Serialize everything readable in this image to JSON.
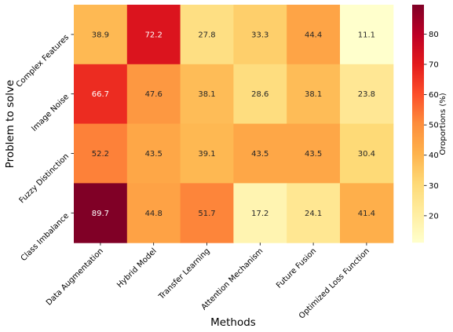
{
  "chart_data": {
    "type": "heatmap",
    "title": "",
    "xlabel": "Methods",
    "ylabel": "Problem to solve",
    "x_categories": [
      "Data Augmentation",
      "Hybrid Model",
      "Transfer Learning",
      "Attention Mechanism",
      "Future Fusion",
      "Optimized Loss Function"
    ],
    "y_categories": [
      "Complex Features",
      "Image Noise",
      "Fuzzy Distinction",
      "Class Imbalance"
    ],
    "values": [
      [
        38.9,
        72.2,
        27.8,
        33.3,
        44.4,
        11.1
      ],
      [
        66.7,
        47.6,
        38.1,
        28.6,
        38.1,
        23.8
      ],
      [
        52.2,
        43.5,
        39.1,
        43.5,
        43.5,
        30.4
      ],
      [
        89.7,
        44.8,
        51.7,
        17.2,
        24.1,
        41.4
      ]
    ],
    "colorbar": {
      "label": "Oroportions (%)",
      "range": [
        11.1,
        89.7
      ],
      "ticks": [
        20,
        30,
        40,
        50,
        60,
        70,
        80
      ],
      "colormap": "YlOrRd"
    }
  }
}
